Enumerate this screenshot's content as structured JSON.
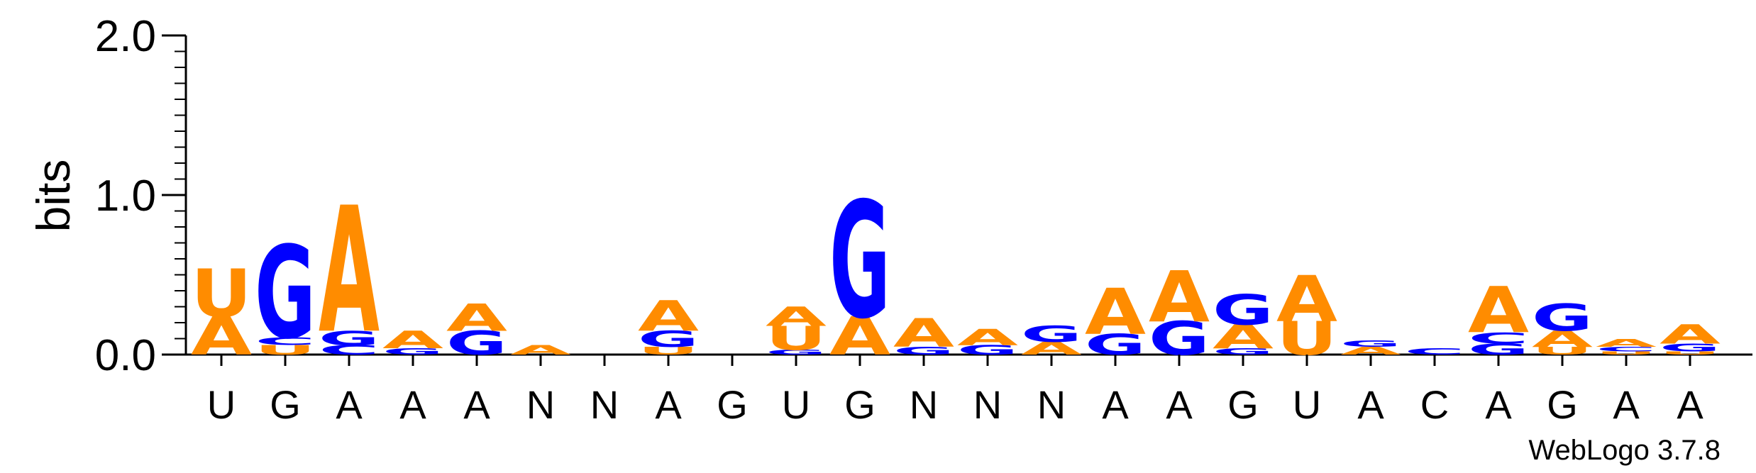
{
  "chart_data": {
    "type": "sequence_logo",
    "ylabel": "bits",
    "ylim": [
      0,
      2.0
    ],
    "yticks": [
      "0.0",
      "1.0",
      "2.0"
    ],
    "ytick_values": [
      0,
      1.0,
      2.0
    ],
    "xtick_labels": [
      "U",
      "G",
      "A",
      "A",
      "A",
      "N",
      "N",
      "A",
      "G",
      "U",
      "G",
      "N",
      "N",
      "N",
      "A",
      "A",
      "G",
      "U",
      "A",
      "C",
      "A",
      "G",
      "A",
      "A"
    ],
    "credit": "WebLogo 3.7.8",
    "colors": {
      "A": "#ff8c00",
      "U": "#ff8c00",
      "G": "#0000ff",
      "C": "#0000ff"
    },
    "positions": [
      {
        "stack": [
          {
            "letter": "A",
            "bits": 0.24
          },
          {
            "letter": "U",
            "bits": 0.3
          }
        ]
      },
      {
        "stack": [
          {
            "letter": "U",
            "bits": 0.06
          },
          {
            "letter": "C",
            "bits": 0.05
          },
          {
            "letter": "G",
            "bits": 0.58
          }
        ]
      },
      {
        "stack": [
          {
            "letter": "C",
            "bits": 0.06
          },
          {
            "letter": "G",
            "bits": 0.09
          },
          {
            "letter": "A",
            "bits": 0.79
          }
        ]
      },
      {
        "stack": [
          {
            "letter": "G",
            "bits": 0.04
          },
          {
            "letter": "A",
            "bits": 0.11
          }
        ]
      },
      {
        "stack": [
          {
            "letter": "G",
            "bits": 0.15
          },
          {
            "letter": "A",
            "bits": 0.17
          }
        ]
      },
      {
        "stack": [
          {
            "letter": "A",
            "bits": 0.06
          }
        ]
      },
      {
        "stack": []
      },
      {
        "stack": [
          {
            "letter": "U",
            "bits": 0.05
          },
          {
            "letter": "G",
            "bits": 0.1
          },
          {
            "letter": "A",
            "bits": 0.19
          }
        ]
      },
      {
        "stack": []
      },
      {
        "stack": [
          {
            "letter": "G",
            "bits": 0.03
          },
          {
            "letter": "U",
            "bits": 0.15
          },
          {
            "letter": "A",
            "bits": 0.12
          }
        ]
      },
      {
        "stack": [
          {
            "letter": "A",
            "bits": 0.24
          },
          {
            "letter": "G",
            "bits": 0.73
          }
        ]
      },
      {
        "stack": [
          {
            "letter": "G",
            "bits": 0.05
          },
          {
            "letter": "A",
            "bits": 0.18
          }
        ]
      },
      {
        "stack": [
          {
            "letter": "G",
            "bits": 0.06
          },
          {
            "letter": "A",
            "bits": 0.1
          }
        ]
      },
      {
        "stack": [
          {
            "letter": "A",
            "bits": 0.08
          },
          {
            "letter": "G",
            "bits": 0.1
          }
        ]
      },
      {
        "stack": [
          {
            "letter": "G",
            "bits": 0.13
          },
          {
            "letter": "A",
            "bits": 0.29
          }
        ]
      },
      {
        "stack": [
          {
            "letter": "G",
            "bits": 0.21
          },
          {
            "letter": "A",
            "bits": 0.32
          }
        ]
      },
      {
        "stack": [
          {
            "letter": "G",
            "bits": 0.04
          },
          {
            "letter": "A",
            "bits": 0.15
          },
          {
            "letter": "G",
            "bits": 0.19
          }
        ]
      },
      {
        "stack": [
          {
            "letter": "U",
            "bits": 0.21
          },
          {
            "letter": "A",
            "bits": 0.29
          }
        ]
      },
      {
        "stack": [
          {
            "letter": "A",
            "bits": 0.05
          },
          {
            "letter": "G",
            "bits": 0.04
          }
        ]
      },
      {
        "stack": [
          {
            "letter": "C",
            "bits": 0.04
          }
        ]
      },
      {
        "stack": [
          {
            "letter": "G",
            "bits": 0.07
          },
          {
            "letter": "C",
            "bits": 0.07
          },
          {
            "letter": "A",
            "bits": 0.29
          }
        ]
      },
      {
        "stack": [
          {
            "letter": "U",
            "bits": 0.05
          },
          {
            "letter": "A",
            "bits": 0.1
          },
          {
            "letter": "G",
            "bits": 0.17
          }
        ]
      },
      {
        "stack": [
          {
            "letter": "U",
            "bits": 0.02
          },
          {
            "letter": "C",
            "bits": 0.03
          },
          {
            "letter": "A",
            "bits": 0.05
          }
        ]
      },
      {
        "stack": [
          {
            "letter": "U",
            "bits": 0.02
          },
          {
            "letter": "G",
            "bits": 0.05
          },
          {
            "letter": "A",
            "bits": 0.12
          }
        ]
      }
    ]
  }
}
